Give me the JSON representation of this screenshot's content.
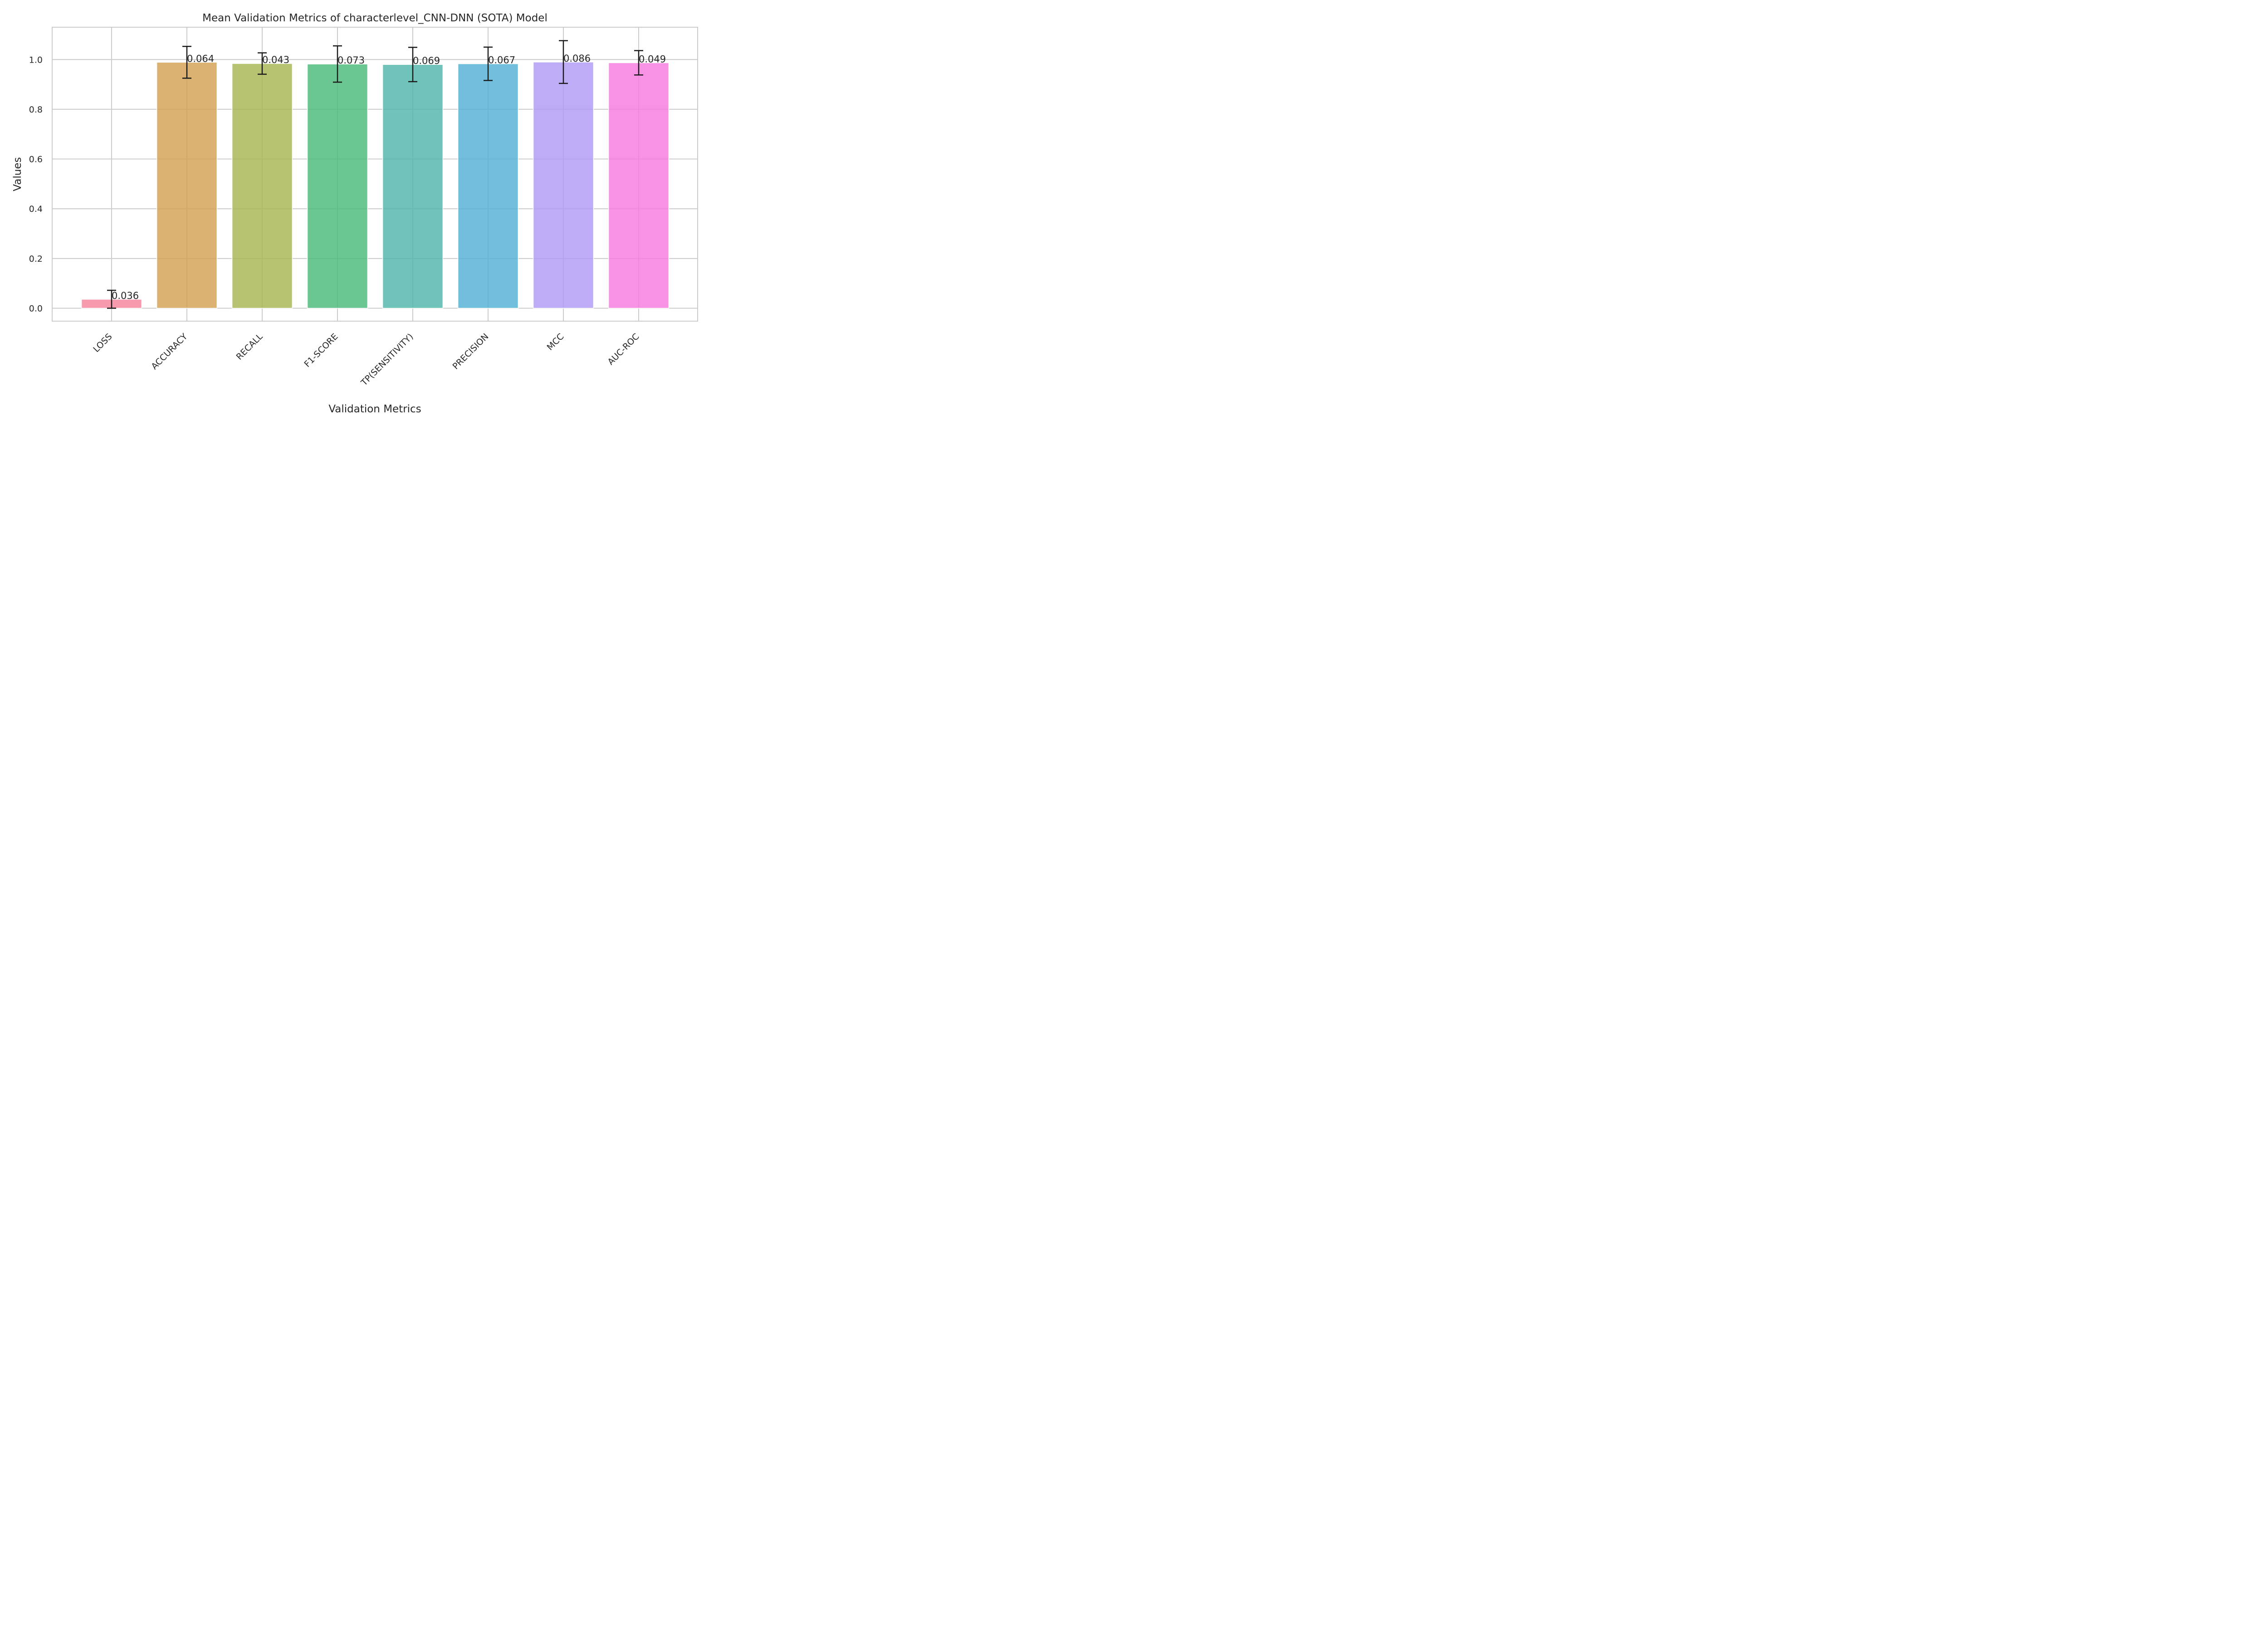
{
  "chart_data": {
    "type": "bar",
    "title": "Mean Validation Metrics of characterlevel_CNN-DNN (SOTA) Model",
    "xlabel": "Validation Metrics",
    "ylabel": "Values",
    "ylim": [
      -0.052,
      1.13
    ],
    "yticks": [
      "0.0",
      "0.2",
      "0.4",
      "0.6",
      "0.8",
      "1.0"
    ],
    "grid": true,
    "categories": [
      "LOSS",
      "ACCURACY",
      "RECALL",
      "F1-SCORE",
      "TP(SENSITIVITY)",
      "PRECISION",
      "MCC",
      "AUC-ROC"
    ],
    "values": [
      0.036,
      0.989,
      0.984,
      0.982,
      0.98,
      0.983,
      0.99,
      0.987
    ],
    "errors": [
      0.036,
      0.064,
      0.043,
      0.073,
      0.069,
      0.067,
      0.086,
      0.049
    ],
    "error_labels": [
      "0.036",
      "0.064",
      "0.043",
      "0.073",
      "0.069",
      "0.067",
      "0.086",
      "0.049"
    ],
    "colors": [
      "#f7849b",
      "#d4a153",
      "#a8b652",
      "#4bbb7a",
      "#4fb6ac",
      "#53b1d6",
      "#b19af5",
      "#f57ade"
    ]
  }
}
